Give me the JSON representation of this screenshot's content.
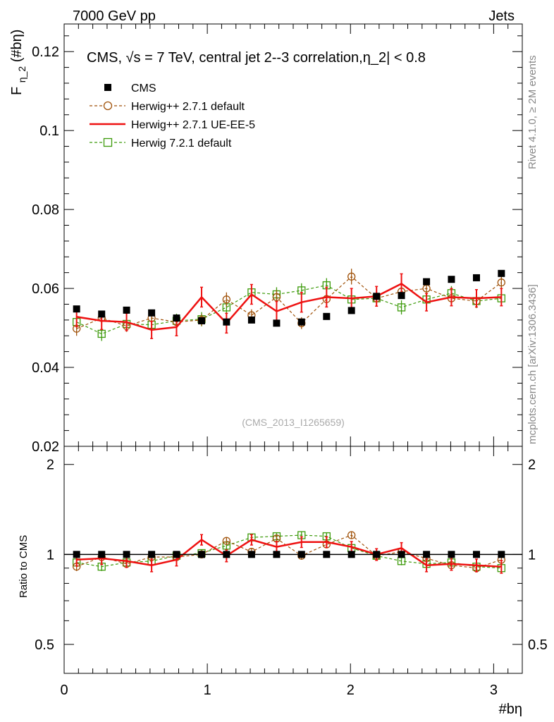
{
  "header": {
    "left": "7000 GeV pp",
    "right": "Jets"
  },
  "side": {
    "rivet": "Rivet 4.1.0, ≥ 2M events",
    "mcplots": "mcplots.cern.ch [arXiv:1306.3436]"
  },
  "colors": {
    "cms": "#000000",
    "herwig271_default": "#a0520a",
    "herwig271_ueee5": "#ee1111",
    "herwig721_default": "#3c9a0a"
  },
  "chart_data": {
    "type": "line",
    "title": "CMS, √s = 7 TeV, central jet 2--3 correlation,η_2| < 0.8",
    "watermark": "(CMS_2013_I1265659)",
    "xlabel": "#bη",
    "ylabel_main": "F",
    "ylabel_sub": "η_2",
    "ylabel_arg": "(#bη)",
    "ylabel_ratio": "Ratio to CMS",
    "xlim": [
      0,
      3.2
    ],
    "ylim": [
      0.02,
      0.127
    ],
    "ratio_ylim": [
      0.4,
      2.3
    ],
    "x_ticks": [
      0,
      1,
      2,
      3
    ],
    "x_tick_labels": [
      "0",
      "1",
      "2",
      "3"
    ],
    "y_ticks": [
      0.02,
      0.04,
      0.06,
      0.08,
      0.1,
      0.12
    ],
    "y_tick_labels": [
      "0.02",
      "0.04",
      "0.06",
      "0.08",
      "0.1",
      "0.12"
    ],
    "ratio_ticks": [
      0.5,
      1,
      2
    ],
    "ratio_tick_labels": [
      "0.5",
      "1",
      "2"
    ],
    "x": [
      0.087,
      0.262,
      0.436,
      0.611,
      0.785,
      0.96,
      1.134,
      1.309,
      1.484,
      1.658,
      1.833,
      2.007,
      2.182,
      2.356,
      2.531,
      2.705,
      2.88,
      3.054
    ],
    "series": [
      {
        "name": "CMS",
        "key": "cms",
        "style": "markers",
        "values": [
          0.0548,
          0.0535,
          0.0545,
          0.0538,
          0.0525,
          0.0518,
          0.0515,
          0.052,
          0.0512,
          0.0515,
          0.0529,
          0.0544,
          0.058,
          0.0582,
          0.0617,
          0.0623,
          0.0627,
          0.0638
        ],
        "errors": [
          0.0006,
          0.0006,
          0.0006,
          0.0006,
          0.0006,
          0.0006,
          0.0006,
          0.0006,
          0.0006,
          0.0006,
          0.0006,
          0.0006,
          0.0006,
          0.0006,
          0.0006,
          0.0006,
          0.0006,
          0.0006
        ],
        "ratio": [
          1,
          1,
          1,
          1,
          1,
          1,
          1,
          1,
          1,
          1,
          1,
          1,
          1,
          1,
          1,
          1,
          1,
          1
        ],
        "ratio_errors": [
          0.011,
          0.011,
          0.011,
          0.011,
          0.011,
          0.011,
          0.011,
          0.011,
          0.011,
          0.011,
          0.011,
          0.011,
          0.011,
          0.011,
          0.011,
          0.011,
          0.011,
          0.011
        ]
      },
      {
        "name": "Herwig++ 2.7.1 default",
        "key": "herwig271_default",
        "style": "circle-dashed",
        "values": [
          0.0498,
          0.0525,
          0.0505,
          0.0525,
          0.0515,
          0.052,
          0.0572,
          0.0532,
          0.0578,
          0.0512,
          0.0573,
          0.063,
          0.0575,
          0.0592,
          0.06,
          0.0575,
          0.0568,
          0.0615
        ],
        "errors": [
          0.0018,
          0.0015,
          0.0015,
          0.0015,
          0.0015,
          0.0015,
          0.0018,
          0.0015,
          0.0018,
          0.0015,
          0.0018,
          0.002,
          0.0018,
          0.0018,
          0.0015,
          0.0018,
          0.0015,
          0.0015
        ],
        "ratio": [
          0.91,
          0.98,
          0.93,
          0.98,
          0.98,
          1.0,
          1.11,
          1.02,
          1.13,
          0.99,
          1.08,
          1.16,
          0.99,
          1.02,
          0.97,
          0.92,
          0.9,
          0.96
        ],
        "ratio_errors": [
          0.03,
          0.03,
          0.03,
          0.03,
          0.03,
          0.03,
          0.03,
          0.03,
          0.03,
          0.03,
          0.03,
          0.03,
          0.03,
          0.03,
          0.03,
          0.03,
          0.03,
          0.03
        ]
      },
      {
        "name": "Herwig++ 2.7.1 UE-EE-5",
        "key": "herwig271_ueee5",
        "style": "line",
        "values": [
          0.0528,
          0.0518,
          0.0515,
          0.0495,
          0.0502,
          0.0578,
          0.0512,
          0.0585,
          0.0542,
          0.0565,
          0.0578,
          0.0575,
          0.058,
          0.0612,
          0.0565,
          0.0578,
          0.0575,
          0.0578
        ],
        "errors": [
          0.0025,
          0.0022,
          0.0022,
          0.0022,
          0.0022,
          0.0025,
          0.0025,
          0.0025,
          0.0025,
          0.0025,
          0.0025,
          0.0025,
          0.0025,
          0.0025,
          0.0022,
          0.0022,
          0.0022,
          0.0022
        ],
        "ratio": [
          0.96,
          0.97,
          0.95,
          0.92,
          0.96,
          1.12,
          0.99,
          1.12,
          1.06,
          1.1,
          1.1,
          1.06,
          1.0,
          1.05,
          0.92,
          0.93,
          0.92,
          0.91
        ],
        "ratio_errors": [
          0.045,
          0.045,
          0.045,
          0.045,
          0.045,
          0.045,
          0.045,
          0.045,
          0.045,
          0.045,
          0.045,
          0.045,
          0.045,
          0.045,
          0.045,
          0.045,
          0.045,
          0.045
        ]
      },
      {
        "name": "Herwig 7.2.1 default",
        "key": "herwig721_default",
        "style": "square-dashed",
        "values": [
          0.0515,
          0.0485,
          0.051,
          0.0508,
          0.0518,
          0.0522,
          0.0552,
          0.059,
          0.0585,
          0.0595,
          0.0608,
          0.0572,
          0.0575,
          0.0552,
          0.0572,
          0.0588,
          0.0568,
          0.0575
        ],
        "errors": [
          0.0018,
          0.0018,
          0.0018,
          0.0018,
          0.0018,
          0.0018,
          0.0018,
          0.0018,
          0.0018,
          0.0018,
          0.0018,
          0.0018,
          0.0018,
          0.0018,
          0.0018,
          0.0018,
          0.0018,
          0.0018
        ],
        "ratio": [
          0.94,
          0.91,
          0.94,
          0.95,
          0.99,
          1.01,
          1.07,
          1.14,
          1.15,
          1.16,
          1.15,
          1.05,
          0.99,
          0.95,
          0.93,
          0.94,
          0.91,
          0.9
        ],
        "ratio_errors": [
          0.03,
          0.03,
          0.03,
          0.03,
          0.03,
          0.03,
          0.03,
          0.03,
          0.03,
          0.03,
          0.03,
          0.03,
          0.03,
          0.03,
          0.03,
          0.03,
          0.03,
          0.03
        ]
      }
    ]
  }
}
